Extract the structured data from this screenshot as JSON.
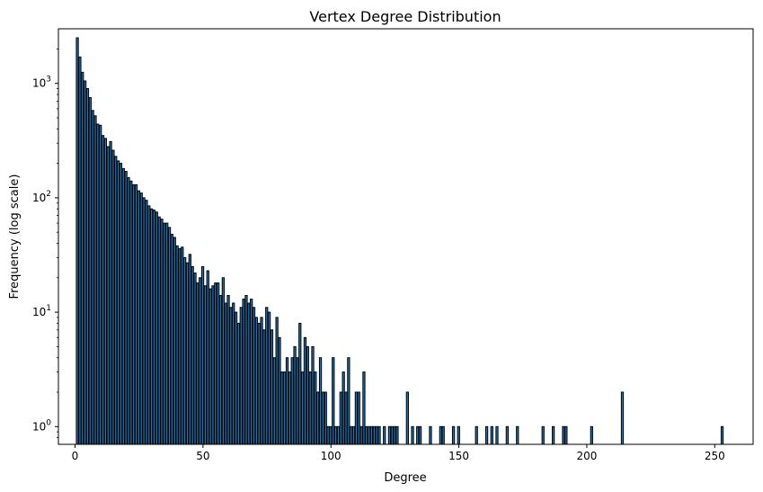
{
  "chart_data": {
    "type": "bar",
    "title": "Vertex Degree Distribution",
    "xlabel": "Degree",
    "ylabel": "Frequency (log scale)",
    "yscale": "log",
    "xlim": [
      -6.5,
      265
    ],
    "ylim": [
      0.7,
      3000
    ],
    "grid": false,
    "bar_color": "#1f77b4",
    "edge_color": "#000000",
    "x_ticks": [
      0,
      50,
      100,
      150,
      200,
      250
    ],
    "y_ticks": [
      1,
      10,
      100,
      1000
    ],
    "y_tick_labels": [
      {
        "base": "10",
        "exp": "0"
      },
      {
        "base": "10",
        "exp": "1"
      },
      {
        "base": "10",
        "exp": "2"
      },
      {
        "base": "10",
        "exp": "3"
      }
    ],
    "points": [
      [
        1,
        2500
      ],
      [
        2,
        1700
      ],
      [
        3,
        1250
      ],
      [
        4,
        1050
      ],
      [
        5,
        900
      ],
      [
        6,
        750
      ],
      [
        7,
        580
      ],
      [
        8,
        520
      ],
      [
        9,
        440
      ],
      [
        10,
        430
      ],
      [
        11,
        350
      ],
      [
        12,
        330
      ],
      [
        13,
        280
      ],
      [
        14,
        310
      ],
      [
        15,
        260
      ],
      [
        16,
        230
      ],
      [
        17,
        210
      ],
      [
        18,
        200
      ],
      [
        19,
        180
      ],
      [
        20,
        170
      ],
      [
        21,
        150
      ],
      [
        22,
        140
      ],
      [
        23,
        130
      ],
      [
        24,
        130
      ],
      [
        25,
        115
      ],
      [
        26,
        110
      ],
      [
        27,
        100
      ],
      [
        28,
        95
      ],
      [
        29,
        85
      ],
      [
        30,
        80
      ],
      [
        31,
        78
      ],
      [
        32,
        75
      ],
      [
        33,
        68
      ],
      [
        34,
        65
      ],
      [
        35,
        60
      ],
      [
        36,
        60
      ],
      [
        37,
        55
      ],
      [
        38,
        48
      ],
      [
        39,
        45
      ],
      [
        40,
        38
      ],
      [
        41,
        36
      ],
      [
        42,
        37
      ],
      [
        43,
        30
      ],
      [
        44,
        27
      ],
      [
        45,
        32
      ],
      [
        46,
        25
      ],
      [
        47,
        22
      ],
      [
        48,
        18
      ],
      [
        49,
        20
      ],
      [
        50,
        25
      ],
      [
        51,
        17
      ],
      [
        52,
        23
      ],
      [
        53,
        16
      ],
      [
        54,
        17
      ],
      [
        55,
        18
      ],
      [
        56,
        18
      ],
      [
        57,
        14
      ],
      [
        58,
        20
      ],
      [
        59,
        12
      ],
      [
        60,
        14
      ],
      [
        61,
        11
      ],
      [
        62,
        12
      ],
      [
        63,
        10
      ],
      [
        64,
        8
      ],
      [
        65,
        11
      ],
      [
        66,
        13
      ],
      [
        67,
        14
      ],
      [
        68,
        12
      ],
      [
        69,
        13
      ],
      [
        70,
        11
      ],
      [
        71,
        9
      ],
      [
        72,
        8
      ],
      [
        73,
        9
      ],
      [
        74,
        7
      ],
      [
        75,
        11
      ],
      [
        76,
        10
      ],
      [
        77,
        7
      ],
      [
        78,
        4
      ],
      [
        79,
        9
      ],
      [
        80,
        6
      ],
      [
        81,
        3
      ],
      [
        82,
        3
      ],
      [
        83,
        4
      ],
      [
        84,
        3
      ],
      [
        85,
        4
      ],
      [
        86,
        5
      ],
      [
        87,
        4
      ],
      [
        88,
        8
      ],
      [
        89,
        3
      ],
      [
        90,
        6
      ],
      [
        91,
        5
      ],
      [
        92,
        3
      ],
      [
        93,
        5
      ],
      [
        94,
        3
      ],
      [
        95,
        2
      ],
      [
        96,
        4
      ],
      [
        97,
        2
      ],
      [
        98,
        2
      ],
      [
        99,
        1
      ],
      [
        100,
        1
      ],
      [
        101,
        4
      ],
      [
        102,
        1
      ],
      [
        103,
        1
      ],
      [
        104,
        2
      ],
      [
        105,
        3
      ],
      [
        106,
        2
      ],
      [
        107,
        4
      ],
      [
        108,
        1
      ],
      [
        109,
        1
      ],
      [
        110,
        2
      ],
      [
        111,
        2
      ],
      [
        112,
        1
      ],
      [
        113,
        3
      ],
      [
        114,
        1
      ],
      [
        115,
        1
      ],
      [
        116,
        1
      ],
      [
        117,
        1
      ],
      [
        118,
        1
      ],
      [
        119,
        1
      ],
      [
        121,
        1
      ],
      [
        123,
        1
      ],
      [
        124,
        1
      ],
      [
        125,
        1
      ],
      [
        126,
        1
      ],
      [
        130,
        2
      ],
      [
        132,
        1
      ],
      [
        134,
        1
      ],
      [
        135,
        1
      ],
      [
        139,
        1
      ],
      [
        143,
        1
      ],
      [
        144,
        1
      ],
      [
        148,
        1
      ],
      [
        150,
        1
      ],
      [
        157,
        1
      ],
      [
        161,
        1
      ],
      [
        163,
        1
      ],
      [
        165,
        1
      ],
      [
        169,
        1
      ],
      [
        173,
        1
      ],
      [
        183,
        1
      ],
      [
        187,
        1
      ],
      [
        191,
        1
      ],
      [
        192,
        1
      ],
      [
        202,
        1
      ],
      [
        214,
        2
      ],
      [
        253,
        1
      ]
    ]
  }
}
